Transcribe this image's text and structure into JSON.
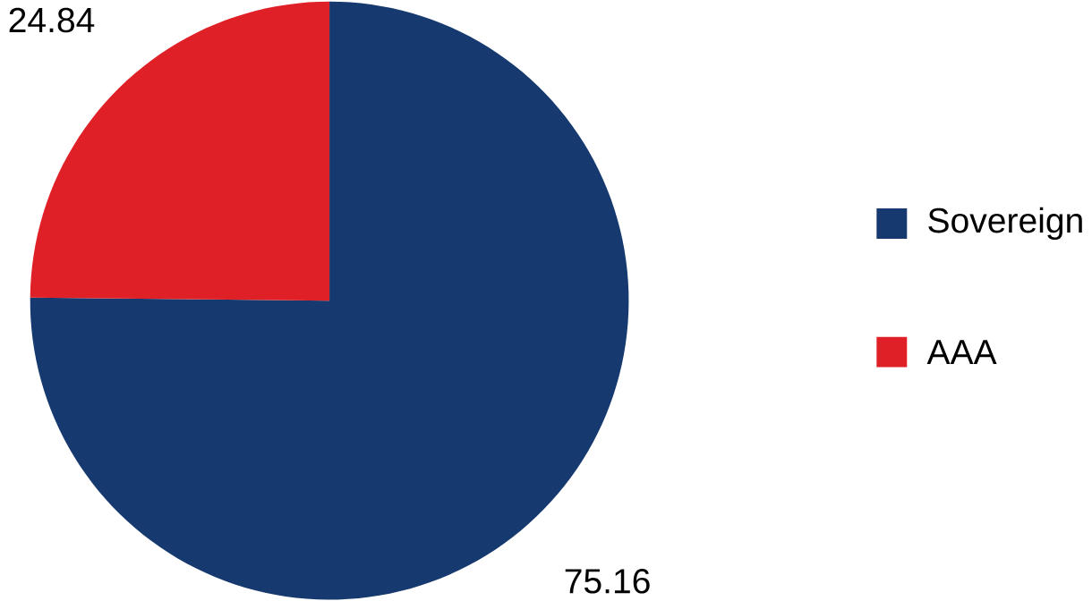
{
  "chart_data": {
    "type": "pie",
    "categories": [
      "Sovereign",
      "AAA"
    ],
    "values": [
      75.16,
      24.84
    ],
    "colors": [
      "#163a70",
      "#e02027"
    ],
    "data_labels": true,
    "legend": "right"
  }
}
